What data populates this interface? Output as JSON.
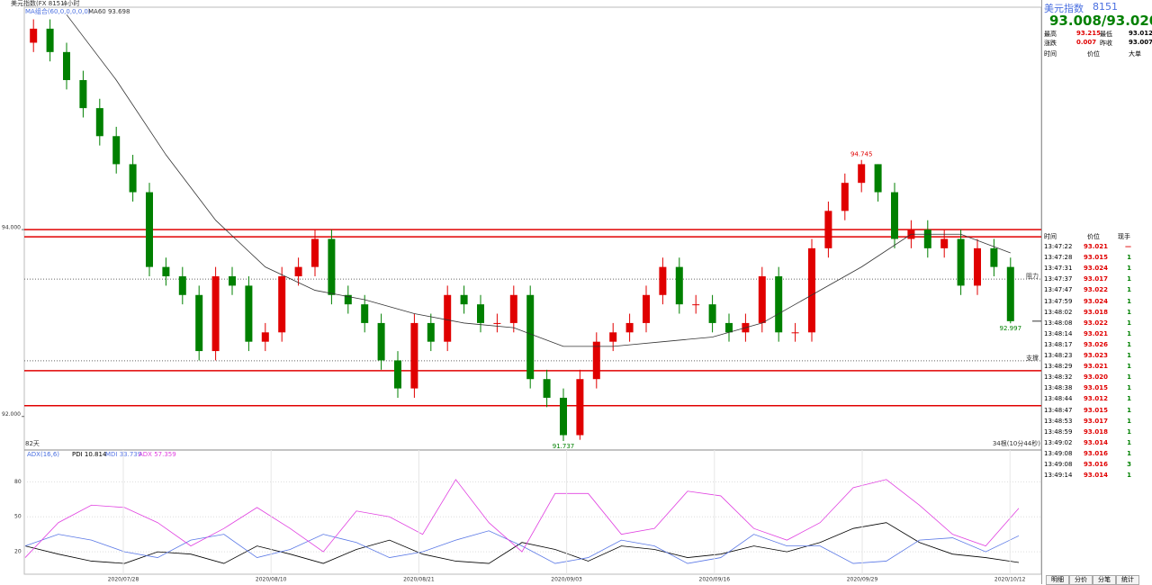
{
  "header": {
    "symbol_title": "美元指数(FX 8151)",
    "period": "4小时",
    "ma_label": "MA组合(60,0,0,0,0,0)",
    "ma_value_label": "MA60 93.698"
  },
  "chart_data": [
    {
      "type": "candlestick",
      "open": [
        96.0,
        96.15,
        95.9,
        95.6,
        95.3,
        95.0,
        94.7,
        94.4,
        93.6,
        93.5,
        93.3,
        92.7,
        93.5,
        93.4,
        92.8,
        92.9,
        93.5,
        93.6,
        93.9,
        93.3,
        93.2,
        93.0,
        92.6,
        92.3,
        93.0,
        92.8,
        93.3,
        93.2,
        93.0,
        93.0,
        93.3,
        92.4,
        92.2,
        91.8,
        92.4,
        92.8,
        92.9,
        93.0,
        93.3,
        93.6,
        93.2,
        93.2,
        93.0,
        92.9,
        93.0,
        93.5,
        92.9,
        92.9,
        93.8,
        94.2,
        94.5,
        94.7,
        94.4,
        93.9,
        94.0,
        93.8,
        93.9,
        93.4,
        93.8,
        93.6
      ],
      "high": [
        96.25,
        96.25,
        96.0,
        95.7,
        95.4,
        95.1,
        94.8,
        94.5,
        93.7,
        93.6,
        93.4,
        93.6,
        93.6,
        93.5,
        93.0,
        93.6,
        93.7,
        94.0,
        94.0,
        93.4,
        93.3,
        93.1,
        92.7,
        93.1,
        93.1,
        93.4,
        93.4,
        93.3,
        93.1,
        93.4,
        93.4,
        92.5,
        92.3,
        92.5,
        92.9,
        93.0,
        93.1,
        93.4,
        93.7,
        93.7,
        93.3,
        93.3,
        93.1,
        93.1,
        93.6,
        93.6,
        93.0,
        93.9,
        94.3,
        94.6,
        94.745,
        94.7,
        94.5,
        94.1,
        94.1,
        94.0,
        94.0,
        93.9,
        93.9,
        93.7
      ],
      "low": [
        95.9,
        95.8,
        95.5,
        95.2,
        94.9,
        94.6,
        94.3,
        93.5,
        93.4,
        93.2,
        92.6,
        92.6,
        93.3,
        92.7,
        92.7,
        92.8,
        93.4,
        93.5,
        93.2,
        93.1,
        92.9,
        92.5,
        92.2,
        92.2,
        92.7,
        92.7,
        93.1,
        92.9,
        92.9,
        92.9,
        92.3,
        92.1,
        91.737,
        91.75,
        92.3,
        92.7,
        92.8,
        92.9,
        93.2,
        93.1,
        93.1,
        92.9,
        92.8,
        92.8,
        92.9,
        92.8,
        92.8,
        92.8,
        93.7,
        94.1,
        94.4,
        94.3,
        93.8,
        93.8,
        93.7,
        93.7,
        93.3,
        93.3,
        93.5,
        92.997
      ],
      "close": [
        96.15,
        95.9,
        95.6,
        95.3,
        95.0,
        94.7,
        94.4,
        93.6,
        93.5,
        93.3,
        92.7,
        93.5,
        93.4,
        92.8,
        92.9,
        93.5,
        93.6,
        93.9,
        93.3,
        93.2,
        93.0,
        92.6,
        92.3,
        93.0,
        92.8,
        93.3,
        93.2,
        93.0,
        93.0,
        93.3,
        92.4,
        92.2,
        91.8,
        92.4,
        92.8,
        92.9,
        93.0,
        93.3,
        93.6,
        93.2,
        93.2,
        93.0,
        92.9,
        93.0,
        93.5,
        92.9,
        92.9,
        93.8,
        94.2,
        94.5,
        94.7,
        94.4,
        93.9,
        94.0,
        93.8,
        93.9,
        93.4,
        93.8,
        93.6,
        93.02
      ],
      "up_color": "#e00000",
      "down_color": "#008000",
      "ylim": [
        91.67,
        96.38
      ],
      "yticks": [
        {
          "value": 94,
          "label": "94.000"
        },
        {
          "value": 92,
          "label": "92.000"
        }
      ],
      "ma": {
        "color": "#333333",
        "x": [
          2,
          5,
          8,
          11,
          14,
          17,
          20,
          23,
          26,
          29,
          32,
          35,
          38,
          41,
          44,
          47,
          50,
          53,
          56,
          59
        ],
        "values": [
          96.3,
          95.6,
          94.8,
          94.1,
          93.6,
          93.35,
          93.25,
          93.1,
          93.0,
          92.95,
          92.75,
          92.75,
          92.8,
          92.85,
          93.0,
          93.3,
          93.6,
          93.95,
          93.95,
          93.75
        ]
      },
      "hlines": {
        "color": "#e00000",
        "values": [
          94.0,
          93.923,
          92.49,
          92.115
        ]
      },
      "dotted_lines": [
        {
          "value": 93.47,
          "label": "阻力"
        },
        {
          "value": 92.596,
          "label": "支撑"
        }
      ],
      "annotations": [
        {
          "index": 50,
          "value": 94.745
        },
        {
          "index": 32,
          "value": 91.737
        },
        {
          "index": 59,
          "value": 92.997
        }
      ],
      "last_price": 93.02,
      "span_label": "82天",
      "count_label": "34根(10分44秒)"
    },
    {
      "type": "line",
      "title": "ADX(16,6)",
      "series": [
        {
          "name": "PDI 10.814",
          "color": "#000000",
          "values": [
            25,
            18,
            12,
            10,
            20,
            18,
            10,
            25,
            18,
            10,
            22,
            30,
            18,
            12,
            10,
            28,
            22,
            12,
            25,
            22,
            15,
            18,
            25,
            20,
            28,
            40,
            45,
            28,
            18,
            15,
            10.814
          ]
        },
        {
          "name": "MDI 33.739",
          "color": "#5a78e6",
          "values": [
            25,
            35,
            30,
            20,
            15,
            30,
            35,
            15,
            22,
            35,
            28,
            15,
            20,
            30,
            38,
            25,
            10,
            15,
            30,
            25,
            10,
            15,
            35,
            25,
            25,
            10,
            12,
            30,
            32,
            20,
            33.739
          ]
        },
        {
          "name": "ADX 57.359",
          "color": "#e040e0",
          "values": [
            15,
            45,
            60,
            58,
            45,
            25,
            40,
            58,
            40,
            20,
            55,
            50,
            35,
            82,
            45,
            20,
            70,
            70,
            35,
            40,
            72,
            68,
            40,
            30,
            45,
            75,
            82,
            60,
            35,
            25,
            57.359
          ]
        }
      ],
      "ylim": [
        0,
        105
      ],
      "yticks": [
        20,
        50,
        80
      ]
    }
  ],
  "time_axis": [
    "2020/07/28",
    "2020/08/10",
    "2020/08/21",
    "2020/09/03",
    "2020/09/16",
    "2020/09/29",
    "2020/10/12"
  ],
  "quote": {
    "name": "美元指数",
    "code": "8151",
    "price": "93.008/93.020",
    "rows": [
      [
        "最高",
        "93.215",
        "最低",
        "93.012"
      ],
      [
        "涨跌",
        "0.007",
        "昨收",
        "93.007"
      ]
    ],
    "big_header": [
      "时间",
      "价位",
      "大单"
    ]
  },
  "ticks_table": {
    "header": [
      "时间",
      "价位",
      "现手"
    ],
    "rows": [
      [
        "13:47:22",
        "93.021",
        "—"
      ],
      [
        "13:47:28",
        "93.015",
        "1"
      ],
      [
        "13:47:31",
        "93.024",
        "1"
      ],
      [
        "13:47:37",
        "93.017",
        "1"
      ],
      [
        "13:47:47",
        "93.022",
        "1"
      ],
      [
        "13:47:59",
        "93.024",
        "1"
      ],
      [
        "13:48:02",
        "93.018",
        "1"
      ],
      [
        "13:48:08",
        "93.022",
        "1"
      ],
      [
        "13:48:14",
        "93.021",
        "1"
      ],
      [
        "13:48:17",
        "93.026",
        "1"
      ],
      [
        "13:48:23",
        "93.023",
        "1"
      ],
      [
        "13:48:29",
        "93.021",
        "1"
      ],
      [
        "13:48:32",
        "93.020",
        "1"
      ],
      [
        "13:48:38",
        "93.015",
        "1"
      ],
      [
        "13:48:44",
        "93.012",
        "1"
      ],
      [
        "13:48:47",
        "93.015",
        "1"
      ],
      [
        "13:48:53",
        "93.017",
        "1"
      ],
      [
        "13:48:59",
        "93.018",
        "1"
      ],
      [
        "13:49:02",
        "93.014",
        "1"
      ],
      [
        "13:49:08",
        "93.016",
        "1"
      ],
      [
        "13:49:08",
        "93.016",
        "3"
      ],
      [
        "13:49:14",
        "93.014",
        "1"
      ]
    ]
  },
  "tabs": [
    "明细",
    "分价",
    "分笔",
    "统计"
  ]
}
